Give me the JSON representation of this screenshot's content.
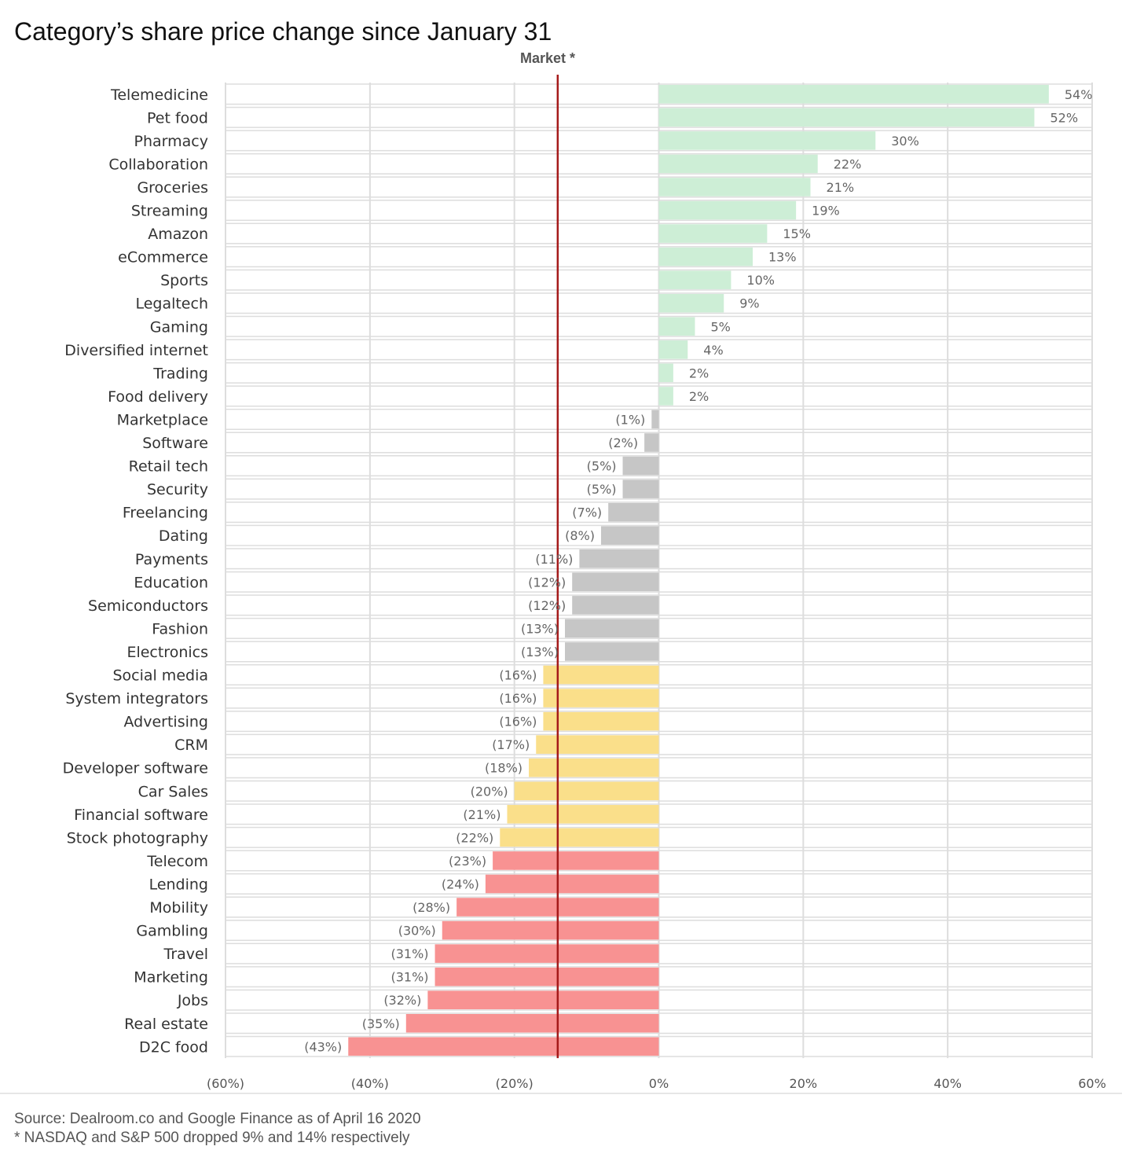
{
  "title": "Category’s share price change since January 31",
  "footer": {
    "source": "Source: Dealroom.co and Google Finance as of April 16 2020",
    "note": "* NASDAQ and S&P 500 dropped 9% and 14% respectively"
  },
  "colors": {
    "positive": "#cdeed6",
    "small_negative": "#c6c6c6",
    "moderate_negative": "#fadf8a",
    "large_negative": "#f89292",
    "market_line": "#a51a1a",
    "grid": "#dddddd"
  },
  "chart_data": {
    "type": "bar",
    "orientation": "horizontal",
    "title": "Category’s share price change since January 31",
    "xlim": [
      -60,
      60
    ],
    "xticks": [
      -60,
      -40,
      -20,
      0,
      20,
      40,
      60
    ],
    "xtick_labels": [
      "(60%)",
      "(40%)",
      "(20%)",
      "0%",
      "20%",
      "40%",
      "60%"
    ],
    "grid": true,
    "reference_line": {
      "label": "Market *",
      "value": -14
    },
    "categories": [
      "Telemedicine",
      "Pet food",
      "Pharmacy",
      "Collaboration",
      "Groceries",
      "Streaming",
      "Amazon",
      "eCommerce",
      "Sports",
      "Legaltech",
      "Gaming",
      "Diversified internet",
      "Trading",
      "Food delivery",
      "Marketplace",
      "Software",
      "Retail tech",
      "Security",
      "Freelancing",
      "Dating",
      "Payments",
      "Education",
      "Semiconductors",
      "Fashion",
      "Electronics",
      "Social media",
      "System integrators",
      "Advertising",
      "CRM",
      "Developer software",
      "Car Sales",
      "Financial software",
      "Stock photography",
      "Telecom",
      "Lending",
      "Mobility",
      "Gambling",
      "Travel",
      "Marketing",
      "Jobs",
      "Real estate",
      "D2C food"
    ],
    "values": [
      54,
      52,
      30,
      22,
      21,
      19,
      15,
      13,
      10,
      9,
      5,
      4,
      2,
      2,
      -1,
      -2,
      -5,
      -5,
      -7,
      -8,
      -11,
      -12,
      -12,
      -13,
      -13,
      -16,
      -16,
      -16,
      -17,
      -18,
      -20,
      -21,
      -22,
      -23,
      -24,
      -28,
      -30,
      -31,
      -31,
      -32,
      -35,
      -43
    ],
    "value_labels": [
      "54%",
      "52%",
      "30%",
      "22%",
      "21%",
      "19%",
      "15%",
      "13%",
      "10%",
      "9%",
      "5%",
      "4%",
      "2%",
      "2%",
      "(1%)",
      "(2%)",
      "(5%)",
      "(5%)",
      "(7%)",
      "(8%)",
      "(11%)",
      "(12%)",
      "(12%)",
      "(13%)",
      "(13%)",
      "(16%)",
      "(16%)",
      "(16%)",
      "(17%)",
      "(18%)",
      "(20%)",
      "(21%)",
      "(22%)",
      "(23%)",
      "(24%)",
      "(28%)",
      "(30%)",
      "(31%)",
      "(31%)",
      "(32%)",
      "(35%)",
      "(43%)"
    ],
    "color_groups": [
      "positive",
      "positive",
      "positive",
      "positive",
      "positive",
      "positive",
      "positive",
      "positive",
      "positive",
      "positive",
      "positive",
      "positive",
      "positive",
      "positive",
      "small_negative",
      "small_negative",
      "small_negative",
      "small_negative",
      "small_negative",
      "small_negative",
      "small_negative",
      "small_negative",
      "small_negative",
      "small_negative",
      "small_negative",
      "moderate_negative",
      "moderate_negative",
      "moderate_negative",
      "moderate_negative",
      "moderate_negative",
      "moderate_negative",
      "moderate_negative",
      "moderate_negative",
      "large_negative",
      "large_negative",
      "large_negative",
      "large_negative",
      "large_negative",
      "large_negative",
      "large_negative",
      "large_negative",
      "large_negative"
    ]
  }
}
